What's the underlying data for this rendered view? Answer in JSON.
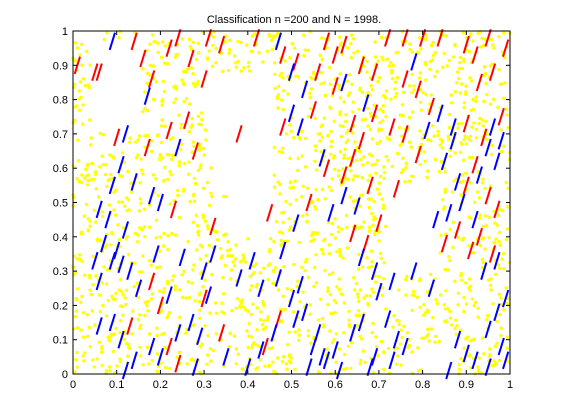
{
  "chart_data": {
    "type": "scatter",
    "title": "Classification n =200 and N = 1998.",
    "xlabel": "",
    "ylabel": "",
    "xlim": [
      0,
      1
    ],
    "ylim": [
      0,
      1
    ],
    "xticks": [
      0,
      0.1,
      0.2,
      0.3,
      0.4,
      0.5,
      0.6,
      0.7,
      0.8,
      0.9,
      1
    ],
    "xtick_labels": [
      "0",
      "0.1",
      "0.2",
      "0.3",
      "0.4",
      "0.5",
      "0.6",
      "0.7",
      "0.8",
      "0.9",
      "1"
    ],
    "yticks": [
      0,
      0.1,
      0.2,
      0.3,
      0.4,
      0.5,
      0.6,
      0.7,
      0.8,
      0.9,
      1
    ],
    "ytick_labels": [
      "0",
      "0.1",
      "0.2",
      "0.3",
      "0.4",
      "0.5",
      "0.6",
      "0.7",
      "0.8",
      "0.9",
      "1"
    ],
    "grid": false,
    "legend": "none",
    "colors": {
      "points": "#ffff00",
      "red_segments": "#ff0000",
      "blue_segments": "#0000ff",
      "axes": "#000000"
    },
    "segment_direction": [
      0.012,
      0.05
    ],
    "series": [
      {
        "color": "#ff0000",
        "marker": "segment",
        "points": [
          [
            0.01,
            0.9
          ],
          [
            0.05,
            0.88
          ],
          [
            0.14,
            0.97
          ],
          [
            0.22,
            0.95
          ],
          [
            0.24,
            0.98
          ],
          [
            0.31,
            0.98
          ],
          [
            0.34,
            0.96
          ],
          [
            0.42,
            0.98
          ],
          [
            0.58,
            0.97
          ],
          [
            0.6,
            0.93
          ],
          [
            0.62,
            0.96
          ],
          [
            0.72,
            0.98
          ],
          [
            0.76,
            0.98
          ],
          [
            0.8,
            0.98
          ],
          [
            0.84,
            0.98
          ],
          [
            0.9,
            0.96
          ],
          [
            0.92,
            0.93
          ],
          [
            0.95,
            0.98
          ],
          [
            0.99,
            0.95
          ],
          [
            0.06,
            0.88
          ],
          [
            0.16,
            0.92
          ],
          [
            0.18,
            0.86
          ],
          [
            0.27,
            0.92
          ],
          [
            0.3,
            0.86
          ],
          [
            0.48,
            0.93
          ],
          [
            0.51,
            0.91
          ],
          [
            0.56,
            0.88
          ],
          [
            0.6,
            0.84
          ],
          [
            0.66,
            0.9
          ],
          [
            0.69,
            0.88
          ],
          [
            0.76,
            0.86
          ],
          [
            0.79,
            0.83
          ],
          [
            0.93,
            0.85
          ],
          [
            0.96,
            0.88
          ],
          [
            0.1,
            0.69
          ],
          [
            0.17,
            0.66
          ],
          [
            0.22,
            0.71
          ],
          [
            0.26,
            0.74
          ],
          [
            0.38,
            0.7
          ],
          [
            0.48,
            0.72
          ],
          [
            0.55,
            0.77
          ],
          [
            0.64,
            0.73
          ],
          [
            0.66,
            0.68
          ],
          [
            0.69,
            0.76
          ],
          [
            0.73,
            0.72
          ],
          [
            0.76,
            0.7
          ],
          [
            0.79,
            0.64
          ],
          [
            0.82,
            0.78
          ],
          [
            0.9,
            0.73
          ],
          [
            0.94,
            0.69
          ],
          [
            0.98,
            0.75
          ],
          [
            0.58,
            0.6
          ],
          [
            0.62,
            0.58
          ],
          [
            0.64,
            0.63
          ],
          [
            0.68,
            0.55
          ],
          [
            0.74,
            0.54
          ],
          [
            0.9,
            0.55
          ],
          [
            0.92,
            0.61
          ],
          [
            0.95,
            0.52
          ],
          [
            0.97,
            0.48
          ],
          [
            0.23,
            0.48
          ],
          [
            0.32,
            0.43
          ],
          [
            0.45,
            0.47
          ],
          [
            0.54,
            0.5
          ],
          [
            0.64,
            0.41
          ],
          [
            0.67,
            0.38
          ],
          [
            0.7,
            0.44
          ],
          [
            0.85,
            0.38
          ],
          [
            0.88,
            0.42
          ],
          [
            0.91,
            0.36
          ],
          [
            0.93,
            0.4
          ],
          [
            0.96,
            0.35
          ],
          [
            0.13,
            0.14
          ],
          [
            0.2,
            0.2
          ],
          [
            0.22,
            0.08
          ],
          [
            0.24,
            0.03
          ],
          [
            0.3,
            0.22
          ],
          [
            0.34,
            0.12
          ],
          [
            0.44,
            0.08
          ],
          [
            0.47,
            0.16
          ],
          [
            0.28,
            0.65
          ],
          [
            0.18,
            0.27
          ]
        ]
      },
      {
        "color": "#0000ff",
        "marker": "segment",
        "points": [
          [
            0.09,
            0.97
          ],
          [
            0.47,
            0.97
          ],
          [
            0.5,
            0.88
          ],
          [
            0.53,
            0.83
          ],
          [
            0.62,
            0.85
          ],
          [
            0.67,
            0.79
          ],
          [
            0.78,
            0.91
          ],
          [
            0.84,
            0.76
          ],
          [
            0.87,
            0.72
          ],
          [
            0.5,
            0.76
          ],
          [
            0.52,
            0.72
          ],
          [
            0.24,
            0.66
          ],
          [
            0.17,
            0.81
          ],
          [
            0.81,
            0.71
          ],
          [
            0.12,
            0.7
          ],
          [
            0.11,
            0.61
          ],
          [
            0.09,
            0.55
          ],
          [
            0.14,
            0.56
          ],
          [
            0.18,
            0.52
          ],
          [
            0.2,
            0.5
          ],
          [
            0.06,
            0.48
          ],
          [
            0.08,
            0.45
          ],
          [
            0.12,
            0.42
          ],
          [
            0.1,
            0.36
          ],
          [
            0.07,
            0.38
          ],
          [
            0.05,
            0.33
          ],
          [
            0.09,
            0.33
          ],
          [
            0.11,
            0.32
          ],
          [
            0.13,
            0.3
          ],
          [
            0.06,
            0.27
          ],
          [
            0.15,
            0.25
          ],
          [
            0.19,
            0.35
          ],
          [
            0.25,
            0.34
          ],
          [
            0.22,
            0.23
          ],
          [
            0.3,
            0.3
          ],
          [
            0.31,
            0.23
          ],
          [
            0.27,
            0.15
          ],
          [
            0.24,
            0.12
          ],
          [
            0.18,
            0.08
          ],
          [
            0.14,
            0.04
          ],
          [
            0.12,
            0.01
          ],
          [
            0.06,
            0.14
          ],
          [
            0.09,
            0.15
          ],
          [
            0.11,
            0.1
          ],
          [
            0.2,
            0.05
          ],
          [
            0.29,
            0.11
          ],
          [
            0.28,
            0.02
          ],
          [
            0.32,
            0.35
          ],
          [
            0.38,
            0.28
          ],
          [
            0.41,
            0.33
          ],
          [
            0.43,
            0.25
          ],
          [
            0.47,
            0.28
          ],
          [
            0.5,
            0.22
          ],
          [
            0.53,
            0.18
          ],
          [
            0.56,
            0.12
          ],
          [
            0.51,
            0.16
          ],
          [
            0.55,
            0.08
          ],
          [
            0.54,
            0.02
          ],
          [
            0.57,
            0.05
          ],
          [
            0.6,
            0.07
          ],
          [
            0.61,
            0.01
          ],
          [
            0.58,
            0.04
          ],
          [
            0.46,
            0.12
          ],
          [
            0.43,
            0.07
          ],
          [
            0.4,
            0.02
          ],
          [
            0.52,
            0.26
          ],
          [
            0.48,
            0.36
          ],
          [
            0.51,
            0.44
          ],
          [
            0.57,
            0.63
          ],
          [
            0.59,
            0.47
          ],
          [
            0.62,
            0.52
          ],
          [
            0.65,
            0.49
          ],
          [
            0.66,
            0.34
          ],
          [
            0.69,
            0.3
          ],
          [
            0.66,
            0.15
          ],
          [
            0.64,
            0.12
          ],
          [
            0.7,
            0.24
          ],
          [
            0.73,
            0.27
          ],
          [
            0.72,
            0.16
          ],
          [
            0.69,
            0.05
          ],
          [
            0.68,
            0.02
          ],
          [
            0.74,
            0.1
          ],
          [
            0.76,
            0.08
          ],
          [
            0.73,
            0.04
          ],
          [
            0.78,
            0.3
          ],
          [
            0.82,
            0.25
          ],
          [
            0.83,
            0.45
          ],
          [
            0.86,
            0.47
          ],
          [
            0.88,
            0.56
          ],
          [
            0.89,
            0.5
          ],
          [
            0.92,
            0.45
          ],
          [
            0.93,
            0.58
          ],
          [
            0.95,
            0.66
          ],
          [
            0.96,
            0.72
          ],
          [
            0.97,
            0.62
          ],
          [
            0.98,
            0.68
          ],
          [
            0.85,
            0.62
          ],
          [
            0.87,
            0.68
          ],
          [
            0.99,
            0.22
          ],
          [
            0.97,
            0.18
          ],
          [
            0.95,
            0.13
          ],
          [
            0.98,
            0.08
          ],
          [
            0.99,
            0.04
          ],
          [
            0.9,
            0.06
          ],
          [
            0.86,
            0.01
          ],
          [
            0.88,
            0.1
          ],
          [
            0.92,
            0.04
          ],
          [
            0.95,
            0.02
          ],
          [
            0.94,
            0.3
          ],
          [
            0.97,
            0.33
          ],
          [
            0.35,
            0.05
          ]
        ]
      }
    ]
  }
}
